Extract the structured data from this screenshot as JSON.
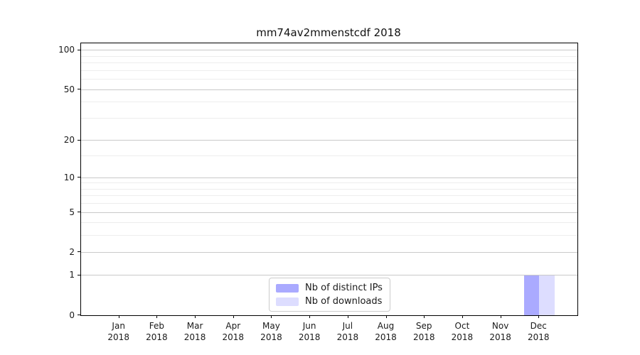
{
  "chart_data": {
    "type": "bar",
    "title": "mm74av2mmenstcdf 2018",
    "categories": [
      {
        "month": "Jan",
        "year": "2018"
      },
      {
        "month": "Feb",
        "year": "2018"
      },
      {
        "month": "Mar",
        "year": "2018"
      },
      {
        "month": "Apr",
        "year": "2018"
      },
      {
        "month": "May",
        "year": "2018"
      },
      {
        "month": "Jun",
        "year": "2018"
      },
      {
        "month": "Jul",
        "year": "2018"
      },
      {
        "month": "Aug",
        "year": "2018"
      },
      {
        "month": "Sep",
        "year": "2018"
      },
      {
        "month": "Oct",
        "year": "2018"
      },
      {
        "month": "Nov",
        "year": "2018"
      },
      {
        "month": "Dec",
        "year": "2018"
      }
    ],
    "series": [
      {
        "name": "Nb of distinct IPs",
        "color": "#aaaaff",
        "values": [
          0,
          0,
          0,
          0,
          0,
          0,
          0,
          0,
          0,
          0,
          0,
          1
        ]
      },
      {
        "name": "Nb of downloads",
        "color": "#ddddff",
        "values": [
          0,
          0,
          0,
          0,
          0,
          0,
          0,
          0,
          0,
          0,
          0,
          1
        ]
      }
    ],
    "y_axis": {
      "scale": "log10(1+y)",
      "major_ticks": [
        0,
        1,
        2,
        5,
        10,
        20,
        50,
        100
      ],
      "minor_ticks": [
        3,
        4,
        6,
        7,
        8,
        9,
        15,
        30,
        40,
        60,
        70,
        80,
        90
      ],
      "top_value": 113
    },
    "xlabel": "",
    "ylabel": "",
    "grid": true,
    "legend_position": "bottom-center"
  }
}
